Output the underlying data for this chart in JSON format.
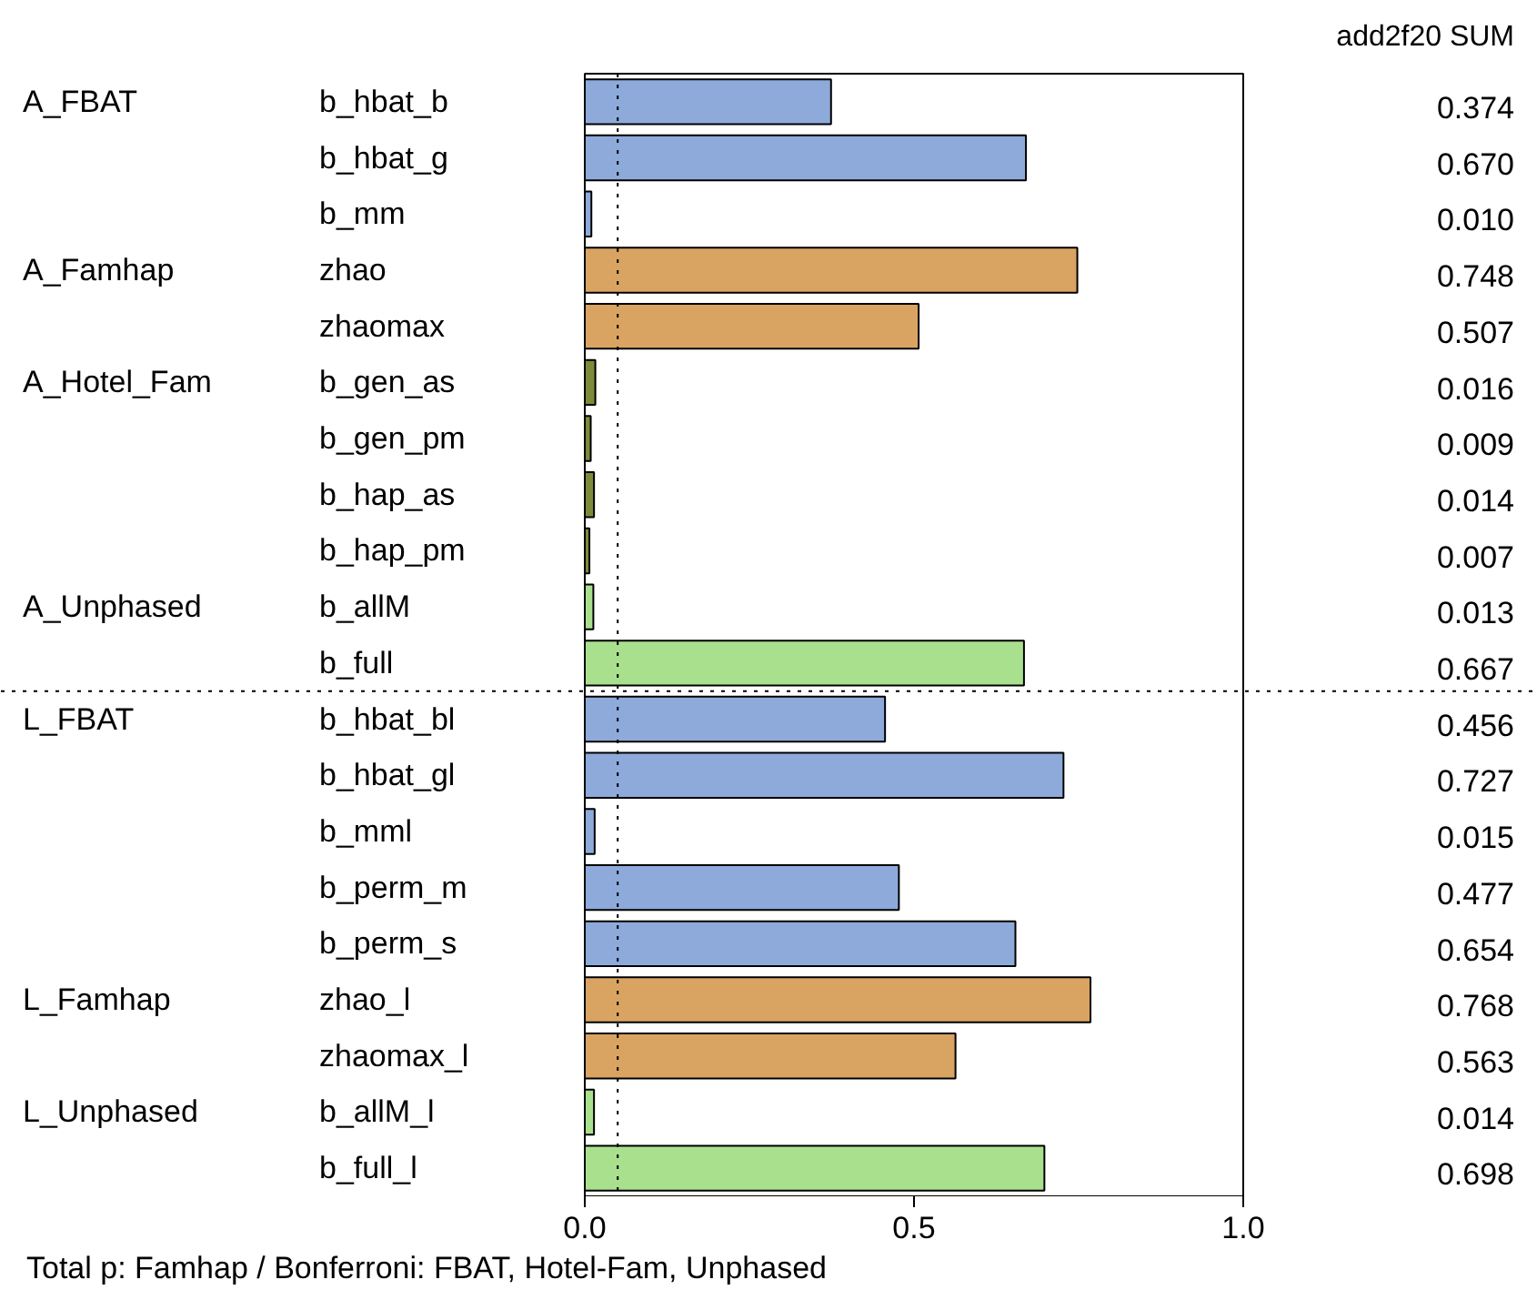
{
  "chart_data": {
    "type": "bar",
    "orientation": "horizontal",
    "categories": [
      "b_hbat_b",
      "b_hbat_g",
      "b_mm",
      "zhao",
      "zhaomax",
      "b_gen_as",
      "b_gen_pm",
      "b_hap_as",
      "b_hap_pm",
      "b_allM",
      "b_full",
      "b_hbat_bl",
      "b_hbat_gl",
      "b_mml",
      "b_perm_m",
      "b_perm_s",
      "zhao_l",
      "zhaomax_l",
      "b_allM_l",
      "b_full_l"
    ],
    "values": [
      0.374,
      0.67,
      0.01,
      0.748,
      0.507,
      0.016,
      0.009,
      0.014,
      0.007,
      0.013,
      0.667,
      0.456,
      0.727,
      0.015,
      0.477,
      0.654,
      0.768,
      0.563,
      0.014,
      0.698
    ],
    "value_labels": [
      "0.374",
      "0.670",
      "0.010",
      "0.748",
      "0.507",
      "0.016",
      "0.009",
      "0.014",
      "0.007",
      "0.013",
      "0.667",
      "0.456",
      "0.727",
      "0.015",
      "0.477",
      "0.654",
      "0.768",
      "0.563",
      "0.014",
      "0.698"
    ],
    "colors": [
      "#8eaadb",
      "#8eaadb",
      "#8eaadb",
      "#d9a462",
      "#d9a462",
      "#7e8a3a",
      "#7e8a3a",
      "#7e8a3a",
      "#7e8a3a",
      "#a9e08e",
      "#a9e08e",
      "#8eaadb",
      "#8eaadb",
      "#8eaadb",
      "#8eaadb",
      "#8eaadb",
      "#d9a462",
      "#d9a462",
      "#a9e08e",
      "#a9e08e"
    ],
    "xlim": [
      0,
      1.0
    ],
    "xticks": [
      {
        "value": 0,
        "label": "0.0"
      },
      {
        "value": 0.5,
        "label": "0.5"
      },
      {
        "value": 1.0,
        "label": "1.0"
      }
    ],
    "tick_labels": "x",
    "grid": false,
    "ref_lines": [
      {
        "axis": "x",
        "value": 0.05,
        "line_style": "dotted"
      },
      {
        "axis": "y",
        "value": "b_full",
        "line_style": "dotted"
      }
    ],
    "annotations": [
      "add2f20 SUM",
      "Total p: Famhap / Bonferroni: FBAT, Hotel-Fam, Unphased",
      "A_FBAT",
      "A_Famhap",
      "A_Hotel_Fam",
      "A_Unphased",
      "L_FBAT",
      "L_Famhap",
      "L_Unphased"
    ]
  }
}
